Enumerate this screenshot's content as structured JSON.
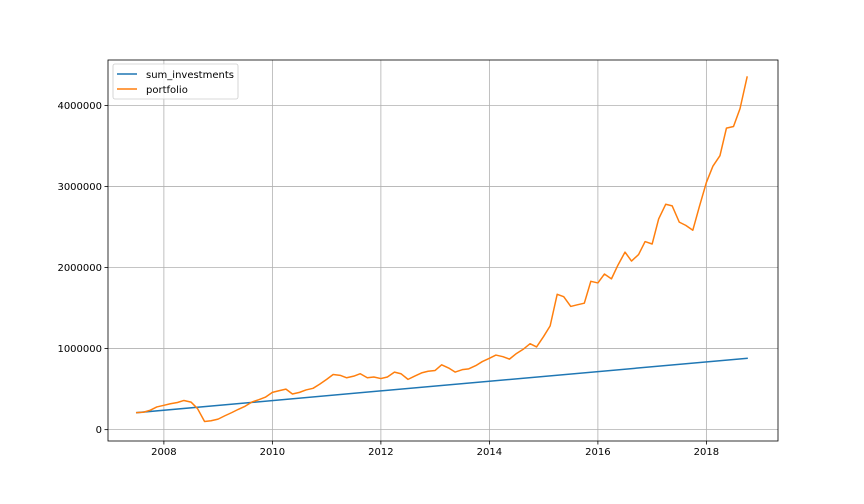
{
  "chart_data": {
    "type": "line",
    "title": "",
    "xlabel": "",
    "ylabel": "",
    "grid": true,
    "legend_position": "top-left",
    "xlim": [
      2006.97,
      2019.32
    ],
    "ylim": [
      -140000,
      4560000
    ],
    "x_ticks": [
      {
        "value": 2008,
        "label": "2008"
      },
      {
        "value": 2010,
        "label": "2010"
      },
      {
        "value": 2012,
        "label": "2012"
      },
      {
        "value": 2014,
        "label": "2014"
      },
      {
        "value": 2016,
        "label": "2016"
      },
      {
        "value": 2018,
        "label": "2018"
      }
    ],
    "y_ticks": [
      {
        "value": 0,
        "label": "0"
      },
      {
        "value": 1000000,
        "label": "1000000"
      },
      {
        "value": 2000000,
        "label": "2000000"
      },
      {
        "value": 3000000,
        "label": "3000000"
      },
      {
        "value": 4000000,
        "label": "4000000"
      }
    ],
    "series": [
      {
        "name": "sum_investments",
        "color": "#1f77b4",
        "x": [
          2007.5,
          2018.75
        ],
        "y": [
          210000,
          880000
        ]
      },
      {
        "name": "portfolio",
        "color": "#ff7f0e",
        "x": [
          2007.5,
          2007.62,
          2007.75,
          2007.87,
          2008.0,
          2008.12,
          2008.25,
          2008.37,
          2008.5,
          2008.62,
          2008.75,
          2008.87,
          2009.0,
          2009.12,
          2009.25,
          2009.37,
          2009.5,
          2009.62,
          2009.75,
          2009.87,
          2010.0,
          2010.12,
          2010.25,
          2010.37,
          2010.5,
          2010.62,
          2010.75,
          2010.87,
          2011.0,
          2011.12,
          2011.25,
          2011.37,
          2011.5,
          2011.62,
          2011.75,
          2011.87,
          2012.0,
          2012.12,
          2012.25,
          2012.37,
          2012.5,
          2012.62,
          2012.75,
          2012.87,
          2013.0,
          2013.12,
          2013.25,
          2013.37,
          2013.5,
          2013.62,
          2013.75,
          2013.87,
          2014.0,
          2014.12,
          2014.25,
          2014.37,
          2014.5,
          2014.62,
          2014.75,
          2014.87,
          2015.0,
          2015.12,
          2015.25,
          2015.37,
          2015.5,
          2015.62,
          2015.75,
          2015.87,
          2016.0,
          2016.12,
          2016.25,
          2016.37,
          2016.5,
          2016.62,
          2016.75,
          2016.87,
          2017.0,
          2017.12,
          2017.25,
          2017.37,
          2017.5,
          2017.62,
          2017.75,
          2017.87,
          2018.0,
          2018.12,
          2018.25,
          2018.37,
          2018.5,
          2018.62,
          2018.75
        ],
        "y": [
          210000,
          215000,
          240000,
          280000,
          300000,
          320000,
          335000,
          360000,
          340000,
          260000,
          100000,
          110000,
          130000,
          170000,
          210000,
          250000,
          290000,
          340000,
          370000,
          400000,
          460000,
          480000,
          500000,
          440000,
          460000,
          490000,
          510000,
          560000,
          620000,
          680000,
          670000,
          640000,
          660000,
          690000,
          640000,
          650000,
          630000,
          650000,
          710000,
          690000,
          620000,
          660000,
          700000,
          720000,
          730000,
          800000,
          760000,
          710000,
          740000,
          750000,
          790000,
          840000,
          880000,
          920000,
          900000,
          870000,
          940000,
          990000,
          1060000,
          1020000,
          1150000,
          1280000,
          1670000,
          1640000,
          1520000,
          1540000,
          1560000,
          1830000,
          1810000,
          1920000,
          1860000,
          2030000,
          2190000,
          2080000,
          2160000,
          2320000,
          2290000,
          2600000,
          2780000,
          2760000,
          2560000,
          2520000,
          2460000,
          2750000,
          3050000,
          3250000,
          3380000,
          3720000,
          3740000,
          3960000,
          4350000
        ]
      }
    ]
  }
}
